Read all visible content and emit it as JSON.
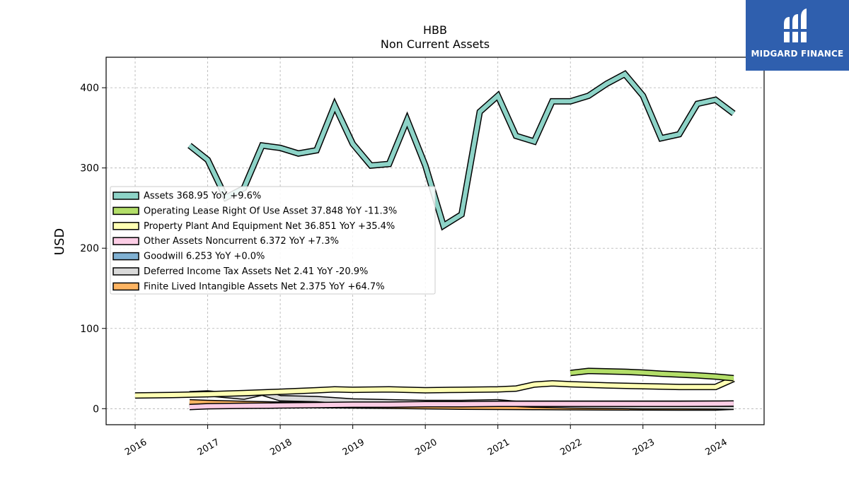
{
  "brand": {
    "name": "MIDGARD FINANCE",
    "logo_icon": "midgard-logo-icon"
  },
  "chart_data": {
    "type": "line",
    "title": "HBB",
    "subtitle": "Non Current  Assets",
    "xlabel": "",
    "ylabel": "USD",
    "xlim": [
      2015.6,
      2024.67
    ],
    "ylim": [
      -20,
      438
    ],
    "yticks": [
      0,
      100,
      200,
      300,
      400
    ],
    "xticks": [
      "2016",
      "2017",
      "2018",
      "2019",
      "2020",
      "2021",
      "2022",
      "2023",
      "2024"
    ],
    "grid": true,
    "legend_position": "upper-left",
    "series": [
      {
        "name": "Assets",
        "legend": "Assets  368.95 YoY +9.6%",
        "color": "#8dd3c7",
        "x": [
          2016.75,
          2017.0,
          2017.25,
          2017.5,
          2017.75,
          2018.0,
          2018.25,
          2018.5,
          2018.75,
          2019.0,
          2019.25,
          2019.5,
          2019.75,
          2020.0,
          2020.25,
          2020.5,
          2020.75,
          2021.0,
          2021.25,
          2021.5,
          2021.75,
          2022.0,
          2022.25,
          2022.5,
          2022.75,
          2023.0,
          2023.25,
          2023.5,
          2023.75,
          2024.0,
          2024.25
        ],
        "y": [
          328,
          310,
          263,
          275,
          328,
          325,
          318,
          322,
          378,
          330,
          303,
          305,
          360,
          303,
          228,
          242,
          370,
          390,
          340,
          333,
          383,
          383,
          390,
          405,
          417,
          390,
          337,
          342,
          380,
          385,
          368
        ]
      },
      {
        "name": "Operating Lease Right Of Use Asset",
        "legend": "Operating Lease Right Of Use Asset  37.848 YoY -11.3%",
        "color": "#b3de69",
        "x": [
          2022.0,
          2022.25,
          2022.5,
          2022.75,
          2023.0,
          2023.25,
          2023.5,
          2023.75,
          2024.0,
          2024.25
        ],
        "y": [
          44.5,
          47,
          46.5,
          46,
          45,
          43.5,
          42.5,
          41.5,
          40,
          38
        ]
      },
      {
        "name": "Property Plant And Equipment Net",
        "legend": "Property Plant And Equipment Net  36.851 YoY +35.4%",
        "color": "#ffffb3",
        "x": [
          2016.0,
          2016.5,
          2017.0,
          2017.5,
          2018.0,
          2018.5,
          2018.75,
          2019.0,
          2019.5,
          2020.0,
          2020.5,
          2021.0,
          2021.25,
          2021.5,
          2021.75,
          2022.0,
          2022.5,
          2023.0,
          2023.5,
          2024.0,
          2024.25
        ],
        "y": [
          16.5,
          17,
          18,
          19.5,
          21,
          23,
          24,
          23.5,
          24,
          23,
          23.5,
          24,
          25,
          30,
          31.5,
          30.5,
          29,
          28,
          27,
          27,
          37
        ]
      },
      {
        "name": "Other Assets Noncurrent",
        "legend": "Other Assets Noncurrent  6.372 YoY +7.3%",
        "color": "#fccde5",
        "x": [
          2016.75,
          2017.0,
          2017.5,
          2018.0,
          2018.5,
          2019.0,
          2019.5,
          2020.0,
          2020.5,
          2021.0,
          2021.5,
          2022.0,
          2022.5,
          2023.0,
          2023.5,
          2024.0,
          2024.25
        ],
        "y": [
          2,
          3,
          3.5,
          4,
          4.5,
          5,
          5,
          5.5,
          5.5,
          6,
          6,
          6,
          6,
          6,
          6,
          6.2,
          6.4
        ]
      },
      {
        "name": "Goodwill",
        "legend": "Goodwill  6.253 YoY +0.0%",
        "color": "#80b1d3",
        "x": [
          2021.0,
          2021.5,
          2022.0,
          2022.5,
          2023.0,
          2023.5,
          2024.0,
          2024.25
        ],
        "y": [
          6.25,
          6.25,
          6.25,
          6.25,
          6.25,
          6.25,
          6.25,
          6.25
        ]
      },
      {
        "name": "Deferred Income Tax Assets Net",
        "legend": "Deferred Income Tax Assets Net  2.41 YoY -20.9%",
        "color": "#d9d9d9",
        "x": [
          2016.75,
          2017.0,
          2017.25,
          2017.5,
          2017.75,
          2018.0,
          2018.5,
          2019.0,
          2019.5,
          2020.0,
          2020.5,
          2021.0,
          2021.25,
          2021.5,
          2022.0,
          2022.5,
          2023.0,
          2023.5,
          2024.0,
          2024.25
        ],
        "y": [
          18,
          19,
          17,
          15,
          20,
          13,
          12,
          9,
          8,
          7,
          7,
          8,
          6,
          5,
          4,
          3.5,
          3,
          3,
          2.8,
          2.4
        ]
      },
      {
        "name": "Finite Lived Intangible Assets Net",
        "legend": "Finite Lived Intangible Assets Net  2.375 YoY +64.7%",
        "color": "#fdb462",
        "x": [
          2016.75,
          2017.0,
          2017.5,
          2018.0,
          2018.5,
          2019.0,
          2019.5,
          2020.0,
          2020.5,
          2021.0,
          2021.5,
          2022.0,
          2022.5,
          2023.0,
          2023.5,
          2024.0,
          2024.25
        ],
        "y": [
          8,
          7,
          6,
          5,
          4.5,
          4,
          3.5,
          3,
          2.5,
          2.2,
          2,
          1.8,
          1.6,
          1.5,
          1.4,
          1.4,
          2.4
        ]
      }
    ]
  }
}
